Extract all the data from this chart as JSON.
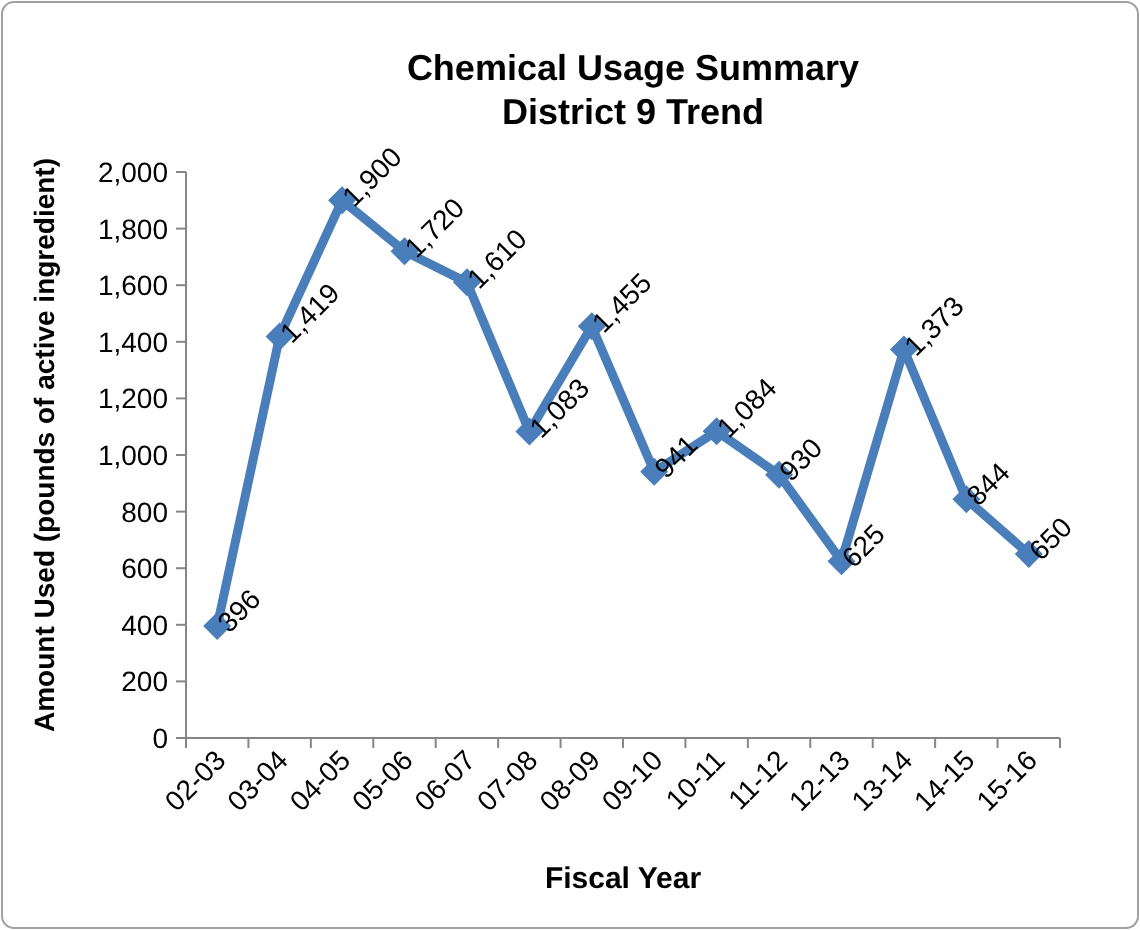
{
  "chart_data": {
    "type": "line",
    "title": "Chemical Usage Summary\nDistrict 9 Trend",
    "xlabel": "Fiscal Year",
    "ylabel": "Amount  Used (pounds of active ingredient)",
    "categories": [
      "02-03",
      "03-04",
      "04-05",
      "05-06",
      "06-07",
      "07-08",
      "08-09",
      "09-10",
      "10-11",
      "11-12",
      "12-13",
      "13-14",
      "14-15",
      "15-16"
    ],
    "series": [
      {
        "color": "#4a7ebb",
        "values": [
          396,
          1419,
          1900,
          1720,
          1610,
          1083,
          1455,
          941,
          1084,
          930,
          625,
          1373,
          844,
          650
        ],
        "value_labels": [
          "396",
          "1,419",
          "1,900",
          "1,720",
          "1,610",
          "1,083",
          "1,455",
          "941",
          "1,084",
          "930",
          "625",
          "1,373",
          "844",
          "650"
        ]
      }
    ],
    "ylim": [
      0,
      2000
    ],
    "yticks": [
      0,
      200,
      400,
      600,
      800,
      {
        "value": 1000,
        "label": "1,000"
      },
      {
        "value": 1200,
        "label": "1,200"
      },
      {
        "value": 1400,
        "label": "1,400"
      },
      {
        "value": 1600,
        "label": "1,600"
      },
      {
        "value": 1800,
        "label": "1,800"
      },
      {
        "value": 2000,
        "label": "2,000"
      }
    ],
    "grid": false,
    "marker": "diamond",
    "line_style": "solid"
  }
}
